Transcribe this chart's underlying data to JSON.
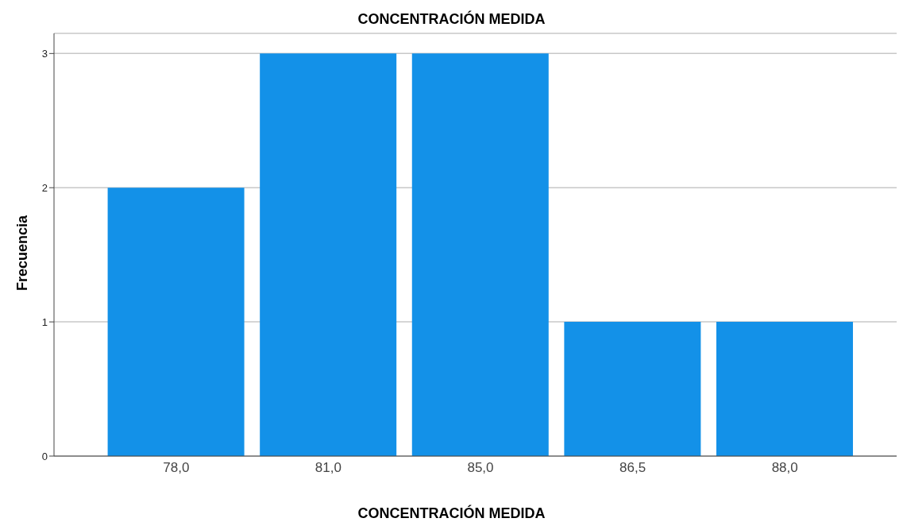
{
  "chart_data": {
    "type": "bar",
    "title": "CONCENTRACIÓN MEDIDA",
    "xlabel": "CONCENTRACIÓN MEDIDA",
    "ylabel": "Frecuencia",
    "categories": [
      "78,0",
      "81,0",
      "85,0",
      "86,5",
      "88,0"
    ],
    "values": [
      2,
      3,
      3,
      1,
      1
    ],
    "color": "#1391e8",
    "ylim": [
      0,
      3.15
    ],
    "yticks": [
      0,
      1,
      2,
      3
    ],
    "grid": "y"
  }
}
